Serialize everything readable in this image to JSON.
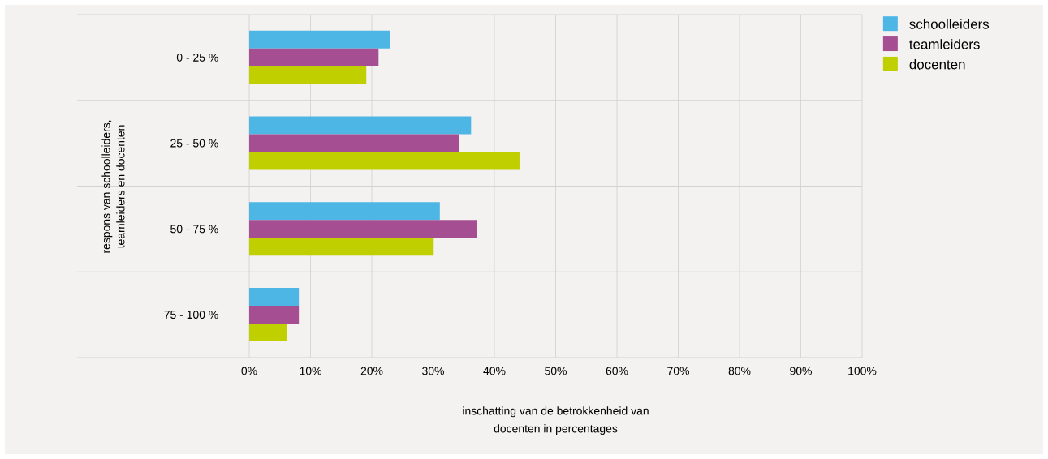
{
  "chart_data": {
    "type": "bar",
    "orientation": "horizontal",
    "categories": [
      "0 - 25 %",
      "25 - 50 %",
      "50 - 75 %",
      "75 - 100 %"
    ],
    "series": [
      {
        "name": "schoolleiders",
        "color": "#4db6e4",
        "values": [
          23,
          36.2,
          31.1,
          8.1
        ]
      },
      {
        "name": "teamleiders",
        "color": "#a54f92",
        "values": [
          21.1,
          34.2,
          37.1,
          8.1
        ]
      },
      {
        "name": "docenten",
        "color": "#bfcf00",
        "values": [
          19.1,
          44.1,
          30.1,
          6.1
        ]
      }
    ],
    "xlabel": "inschatting van de betrokkenheid van docenten in percentages",
    "ylabel": "respons van schoolleiders, teamleiders en docenten",
    "xlim": [
      0,
      100
    ],
    "xticks": [
      {
        "value": 0,
        "label": "0%"
      },
      {
        "value": 10,
        "label": "10%"
      },
      {
        "value": 20,
        "label": "20%"
      },
      {
        "value": 30,
        "label": "30%"
      },
      {
        "value": 40,
        "label": "40%"
      },
      {
        "value": 50,
        "label": "50%"
      },
      {
        "value": 60,
        "label": "60%"
      },
      {
        "value": 70,
        "label": "70%"
      },
      {
        "value": 80,
        "label": "80%"
      },
      {
        "value": 90,
        "label": "90%"
      },
      {
        "value": 100,
        "label": "100%"
      }
    ],
    "grid": "x",
    "legend": "top right"
  }
}
